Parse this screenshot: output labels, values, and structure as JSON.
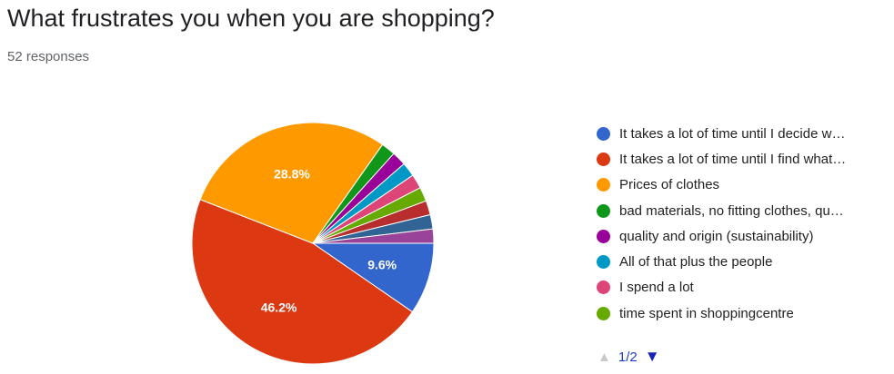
{
  "header": {
    "title": "What frustrates you when you are shopping?",
    "subtitle": "52 responses"
  },
  "legend": {
    "items": [
      {
        "label": "It takes a lot of time until I decide w…",
        "color": "#3366cc"
      },
      {
        "label": "It takes a lot of time until I find what…",
        "color": "#dc3912"
      },
      {
        "label": "Prices of clothes",
        "color": "#ff9900"
      },
      {
        "label": "bad materials, no fitting clothes, qu…",
        "color": "#109618"
      },
      {
        "label": "quality and origin (sustainability)",
        "color": "#990099"
      },
      {
        "label": "All of that plus the people",
        "color": "#0099c6"
      },
      {
        "label": "I spend a lot",
        "color": "#dd4477"
      },
      {
        "label": "time spent in shoppingcentre",
        "color": "#66aa00"
      }
    ]
  },
  "pager": {
    "label": "1/2"
  },
  "chart_data": {
    "type": "pie",
    "title": "What frustrates you when you are shopping?",
    "total_responses": 52,
    "slices": [
      {
        "label": "It takes a lot of time until I decide w…",
        "value": 9.6,
        "display": "9.6%",
        "color": "#3366cc"
      },
      {
        "label": "It takes a lot of time until I find what…",
        "value": 46.2,
        "display": "46.2%",
        "color": "#dc3912"
      },
      {
        "label": "Prices of clothes",
        "value": 28.8,
        "display": "28.8%",
        "color": "#ff9900"
      },
      {
        "label": "bad materials, no fitting clothes, qu…",
        "value": 1.9,
        "display": "",
        "color": "#109618"
      },
      {
        "label": "quality and origin (sustainability)",
        "value": 1.9,
        "display": "",
        "color": "#990099"
      },
      {
        "label": "All of that plus the people",
        "value": 1.9,
        "display": "",
        "color": "#0099c6"
      },
      {
        "label": "I spend a lot",
        "value": 1.9,
        "display": "",
        "color": "#dd4477"
      },
      {
        "label": "time spent in shoppingcentre",
        "value": 1.9,
        "display": "",
        "color": "#66aa00"
      },
      {
        "label": "",
        "value": 1.9,
        "display": "",
        "color": "#b82e2e"
      },
      {
        "label": "",
        "value": 1.9,
        "display": "",
        "color": "#316395"
      },
      {
        "label": "",
        "value": 1.9,
        "display": "",
        "color": "#994499"
      }
    ]
  }
}
